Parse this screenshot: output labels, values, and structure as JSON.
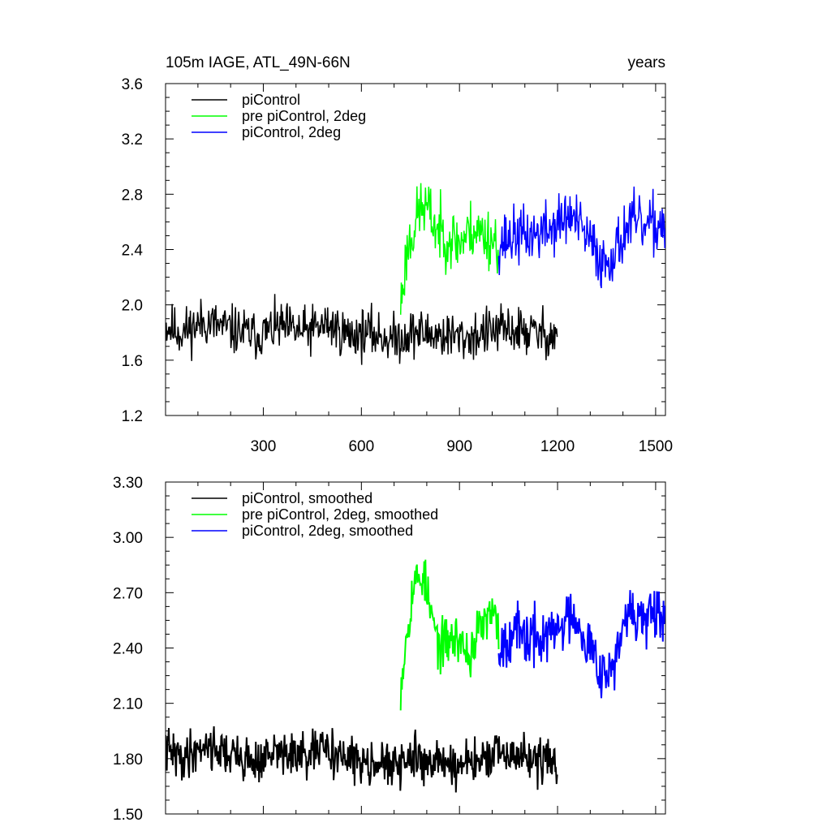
{
  "chart_data": [
    {
      "type": "line",
      "title_left": "105m IAGE, ATL_49N-66N",
      "title_right": "years",
      "xlim": [
        1,
        1530
      ],
      "ylim": [
        1.2,
        3.6
      ],
      "xticks": [
        300,
        600,
        900,
        1200,
        1500
      ],
      "xtick_labels": [
        "300",
        "600",
        "900",
        "1200",
        "1500"
      ],
      "yticks": [
        1.2,
        1.6,
        2.0,
        2.4,
        2.8,
        3.2,
        3.6
      ],
      "ytick_labels": [
        "1.2",
        "1.6",
        "2.0",
        "2.4",
        "2.8",
        "3.2",
        "3.6"
      ],
      "legend_position": "top-left",
      "series": [
        {
          "name": "piControl",
          "color": "#000000",
          "x_range": [
            1,
            1200
          ],
          "knots": [
            [
              1,
              1.85
            ],
            [
              50,
              1.8
            ],
            [
              120,
              1.88
            ],
            [
              200,
              1.82
            ],
            [
              280,
              1.78
            ],
            [
              350,
              1.84
            ],
            [
              420,
              1.8
            ],
            [
              500,
              1.86
            ],
            [
              560,
              1.78
            ],
            [
              620,
              1.8
            ],
            [
              700,
              1.75
            ],
            [
              760,
              1.8
            ],
            [
              850,
              1.78
            ],
            [
              920,
              1.76
            ],
            [
              980,
              1.8
            ],
            [
              1050,
              1.82
            ],
            [
              1120,
              1.8
            ],
            [
              1200,
              1.78
            ]
          ],
          "noise": 0.16,
          "seed": 11
        },
        {
          "name": "pre piControl, 2deg",
          "color": "#00ff00",
          "x_range": [
            720,
            1020
          ],
          "knots": [
            [
              720,
              2.0
            ],
            [
              740,
              2.4
            ],
            [
              780,
              2.7
            ],
            [
              800,
              2.7
            ],
            [
              830,
              2.55
            ],
            [
              860,
              2.5
            ],
            [
              900,
              2.45
            ],
            [
              940,
              2.55
            ],
            [
              980,
              2.5
            ],
            [
              1020,
              2.45
            ]
          ],
          "noise": 0.2,
          "seed": 23
        },
        {
          "name": "piControl, 2deg",
          "color": "#0000ff",
          "x_range": [
            1020,
            1530
          ],
          "knots": [
            [
              1020,
              2.45
            ],
            [
              1070,
              2.5
            ],
            [
              1120,
              2.5
            ],
            [
              1180,
              2.55
            ],
            [
              1240,
              2.65
            ],
            [
              1300,
              2.45
            ],
            [
              1340,
              2.3
            ],
            [
              1380,
              2.4
            ],
            [
              1420,
              2.6
            ],
            [
              1470,
              2.55
            ],
            [
              1530,
              2.6
            ]
          ],
          "noise": 0.19,
          "seed": 37
        }
      ]
    },
    {
      "type": "line",
      "xlim": [
        1,
        1530
      ],
      "ylim": [
        1.5,
        3.3
      ],
      "xticks": [
        300,
        600,
        900,
        1200,
        1500
      ],
      "yticks": [
        1.5,
        1.8,
        2.1,
        2.4,
        2.7,
        3.0,
        3.3
      ],
      "ytick_labels": [
        "1.50",
        "1.80",
        "2.10",
        "2.40",
        "2.70",
        "3.00",
        "3.30"
      ],
      "legend_position": "top-left",
      "series": [
        {
          "name": "piControl, smoothed",
          "color": "#000000",
          "x_range": [
            1,
            1200
          ],
          "knots": [
            [
              1,
              1.85
            ],
            [
              50,
              1.8
            ],
            [
              120,
              1.88
            ],
            [
              200,
              1.82
            ],
            [
              280,
              1.78
            ],
            [
              350,
              1.84
            ],
            [
              420,
              1.8
            ],
            [
              500,
              1.86
            ],
            [
              560,
              1.78
            ],
            [
              620,
              1.8
            ],
            [
              700,
              1.75
            ],
            [
              760,
              1.8
            ],
            [
              850,
              1.78
            ],
            [
              920,
              1.76
            ],
            [
              980,
              1.8
            ],
            [
              1050,
              1.82
            ],
            [
              1120,
              1.8
            ],
            [
              1200,
              1.78
            ]
          ],
          "noise": 0.11,
          "seed": 41
        },
        {
          "name": "pre piControl, 2deg, smoothed",
          "color": "#00ff00",
          "x_range": [
            720,
            1020
          ],
          "knots": [
            [
              720,
              2.2
            ],
            [
              740,
              2.5
            ],
            [
              760,
              2.75
            ],
            [
              790,
              2.8
            ],
            [
              810,
              2.6
            ],
            [
              840,
              2.4
            ],
            [
              870,
              2.45
            ],
            [
              900,
              2.45
            ],
            [
              930,
              2.35
            ],
            [
              960,
              2.5
            ],
            [
              1000,
              2.58
            ],
            [
              1020,
              2.5
            ]
          ],
          "noise": 0.12,
          "seed": 53
        },
        {
          "name": "piControl, 2deg, smoothed",
          "color": "#0000ff",
          "x_range": [
            1020,
            1530
          ],
          "knots": [
            [
              1020,
              2.4
            ],
            [
              1060,
              2.5
            ],
            [
              1100,
              2.45
            ],
            [
              1150,
              2.45
            ],
            [
              1200,
              2.5
            ],
            [
              1250,
              2.6
            ],
            [
              1300,
              2.4
            ],
            [
              1350,
              2.25
            ],
            [
              1380,
              2.35
            ],
            [
              1420,
              2.6
            ],
            [
              1470,
              2.55
            ],
            [
              1530,
              2.55
            ]
          ],
          "noise": 0.14,
          "seed": 67
        }
      ]
    }
  ]
}
